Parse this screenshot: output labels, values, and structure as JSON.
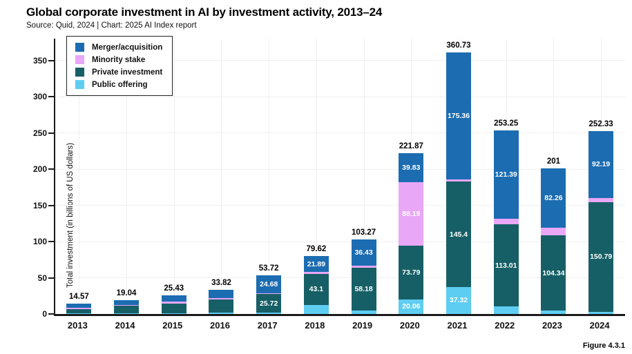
{
  "header": {
    "title": "Global corporate investment in AI by investment activity, 2013–24",
    "source": "Source: Quid, 2024 | Chart: 2025 AI Index report"
  },
  "figure_label": "Figure 4.3.1",
  "colors": {
    "merger_acquisition": "#1c6cb1",
    "minority_stake": "#e9a7f7",
    "private_investment": "#175f66",
    "public_offering": "#5ecdf2",
    "axis": "#1a1a1a",
    "grid": "#f1f0f2"
  },
  "chart_data": {
    "type": "bar",
    "variant": "stacked",
    "title": "Global corporate investment in AI by investment activity, 2013–24",
    "xlabel": "",
    "ylabel": "Total investment (in billions of US dollars)",
    "categories": [
      "2013",
      "2014",
      "2015",
      "2016",
      "2017",
      "2018",
      "2019",
      "2020",
      "2021",
      "2022",
      "2023",
      "2024"
    ],
    "yticks": [
      0,
      50,
      100,
      150,
      200,
      250,
      300,
      350
    ],
    "ylim": [
      0,
      380
    ],
    "grid": true,
    "legend_position": "top-left",
    "legend": [
      {
        "label": "Merger/acquisition",
        "color_key": "merger_acquisition"
      },
      {
        "label": "Minority stake",
        "color_key": "minority_stake"
      },
      {
        "label": "Private investment",
        "color_key": "private_investment"
      },
      {
        "label": "Public offering",
        "color_key": "public_offering"
      }
    ],
    "series": [
      {
        "name": "Public offering",
        "color_key": "public_offering",
        "values": [
          1.1,
          1.3,
          1.2,
          1.8,
          1.8,
          12.5,
          5.2,
          20.06,
          37.32,
          10.5,
          4.5,
          3.2
        ],
        "labels": [
          null,
          null,
          null,
          null,
          null,
          null,
          null,
          "20.06",
          "37.32",
          null,
          null,
          null
        ]
      },
      {
        "name": "Private investment",
        "color_key": "private_investment",
        "values": [
          5.3,
          10.0,
          13.0,
          18.0,
          25.72,
          43.1,
          58.18,
          73.79,
          145.4,
          113.01,
          104.34,
          150.79
        ],
        "labels": [
          null,
          null,
          null,
          null,
          "25.72",
          "43.1",
          "58.18",
          "73.79",
          "145.4",
          "113.01",
          "104.34",
          "150.79"
        ]
      },
      {
        "name": "Minority stake",
        "color_key": "minority_stake",
        "values": [
          2.4,
          0.74,
          3.23,
          2.02,
          1.52,
          2.13,
          3.46,
          88.19,
          2.65,
          8.35,
          9.9,
          6.15
        ],
        "labels": [
          null,
          null,
          null,
          null,
          null,
          null,
          null,
          "88.19",
          null,
          null,
          null,
          null
        ]
      },
      {
        "name": "Merger/acquisition",
        "color_key": "merger_acquisition",
        "values": [
          5.77,
          7.0,
          8.0,
          12.0,
          24.68,
          21.89,
          36.43,
          39.83,
          175.36,
          121.39,
          82.26,
          92.19
        ],
        "labels": [
          null,
          null,
          null,
          null,
          "24.68",
          "21.89",
          "36.43",
          "39.83",
          "175.36",
          "121.39",
          "82.26",
          "92.19"
        ]
      }
    ],
    "totals": {
      "values": [
        14.57,
        19.04,
        25.43,
        33.82,
        53.72,
        79.62,
        103.27,
        221.87,
        360.73,
        253.25,
        201,
        252.33
      ],
      "labels": [
        "14.57",
        "19.04",
        "25.43",
        "33.82",
        "53.72",
        "79.62",
        "103.27",
        "221.87",
        "360.73",
        "253.25",
        "201",
        "252.33"
      ]
    }
  }
}
